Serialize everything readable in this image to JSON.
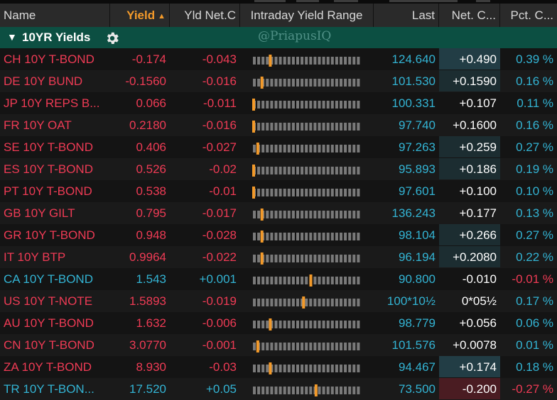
{
  "columns": {
    "name": "Name",
    "yield": "Yield",
    "yld_net": "Yld Net.C",
    "range": "Intraday Yield Range",
    "last": "Last",
    "net": "Net. C...",
    "pct": "Pct. C..."
  },
  "sort_indicator": "▲",
  "group": {
    "caret": "▼",
    "title": "10YR Yields",
    "watermark": "@PriapusIQ"
  },
  "colors": {
    "negative": "#ef3b55",
    "positive": "#33b4d4",
    "accent_orange": "#f39a2a",
    "group_bg": "#0c4f42"
  },
  "rows": [
    {
      "name": "CH 10Y T-BOND",
      "yield": "-0.174",
      "yld_net": "-0.043",
      "last": "124.640",
      "net": "+0.490",
      "pct": "0.39 %",
      "range_pos": 0.16,
      "trend": "down",
      "net_bg": "teal"
    },
    {
      "name": "DE 10Y BUND",
      "yield": "-0.1560",
      "yld_net": "-0.016",
      "last": "101.530",
      "net": "+0.1590",
      "pct": "0.16 %",
      "range_pos": 0.08,
      "trend": "down",
      "net_bg": "teal-light"
    },
    {
      "name": "JP 10Y REPS B...",
      "yield": "0.066",
      "yld_net": "-0.011",
      "last": "100.331",
      "net": "+0.107",
      "pct": "0.11 %",
      "range_pos": 0.0,
      "trend": "down",
      "net_bg": "none"
    },
    {
      "name": "FR 10Y OAT",
      "yield": "0.2180",
      "yld_net": "-0.016",
      "last": "97.740",
      "net": "+0.1600",
      "pct": "0.16 %",
      "range_pos": 0.0,
      "trend": "down",
      "net_bg": "none"
    },
    {
      "name": "SE 10Y T-BOND",
      "yield": "0.406",
      "yld_net": "-0.027",
      "last": "97.263",
      "net": "+0.259",
      "pct": "0.27 %",
      "range_pos": 0.04,
      "trend": "down",
      "net_bg": "teal-light"
    },
    {
      "name": "ES 10Y T-BOND",
      "yield": "0.526",
      "yld_net": "-0.02",
      "last": "95.893",
      "net": "+0.186",
      "pct": "0.19 %",
      "range_pos": 0.0,
      "trend": "down",
      "net_bg": "teal-light"
    },
    {
      "name": "PT 10Y T-BOND",
      "yield": "0.538",
      "yld_net": "-0.01",
      "last": "97.601",
      "net": "+0.100",
      "pct": "0.10 %",
      "range_pos": 0.0,
      "trend": "down",
      "net_bg": "none"
    },
    {
      "name": "GB 10Y GILT",
      "yield": "0.795",
      "yld_net": "-0.017",
      "last": "136.243",
      "net": "+0.177",
      "pct": "0.13 %",
      "range_pos": 0.08,
      "trend": "down",
      "net_bg": "none"
    },
    {
      "name": "GR 10Y T-BOND",
      "yield": "0.948",
      "yld_net": "-0.028",
      "last": "98.104",
      "net": "+0.266",
      "pct": "0.27 %",
      "range_pos": 0.08,
      "trend": "down",
      "net_bg": "teal-light"
    },
    {
      "name": "IT 10Y BTP",
      "yield": "0.9964",
      "yld_net": "-0.022",
      "last": "96.194",
      "net": "+0.2080",
      "pct": "0.22 %",
      "range_pos": 0.08,
      "trend": "down",
      "net_bg": "teal-light"
    },
    {
      "name": "CA 10Y T-BOND",
      "yield": "1.543",
      "yld_net": "+0.001",
      "last": "90.800",
      "net": "-0.010",
      "pct": "-0.01 %",
      "range_pos": 0.55,
      "trend": "up",
      "net_bg": "none"
    },
    {
      "name": "US 10Y T-NOTE",
      "yield": "1.5893",
      "yld_net": "-0.019",
      "last": "100*10½",
      "net": "0*05½",
      "pct": "0.17 %",
      "range_pos": 0.48,
      "trend": "down",
      "net_bg": "none"
    },
    {
      "name": "AU 10Y T-BOND",
      "yield": "1.632",
      "yld_net": "-0.006",
      "last": "98.779",
      "net": "+0.056",
      "pct": "0.06 %",
      "range_pos": 0.16,
      "trend": "down",
      "net_bg": "none"
    },
    {
      "name": "CN 10Y T-BOND",
      "yield": "3.0770",
      "yld_net": "-0.001",
      "last": "101.576",
      "net": "+0.0078",
      "pct": "0.01 %",
      "range_pos": 0.04,
      "trend": "down",
      "net_bg": "none"
    },
    {
      "name": "ZA 10Y T-BOND",
      "yield": "8.930",
      "yld_net": "-0.03",
      "last": "94.467",
      "net": "+0.174",
      "pct": "0.18 %",
      "range_pos": 0.16,
      "trend": "down",
      "net_bg": "teal"
    },
    {
      "name": "TR 10Y T-BON...",
      "yield": "17.520",
      "yld_net": "+0.05",
      "last": "73.500",
      "net": "-0.200",
      "pct": "-0.27 %",
      "range_pos": 0.6,
      "trend": "up",
      "net_bg": "red"
    }
  ]
}
